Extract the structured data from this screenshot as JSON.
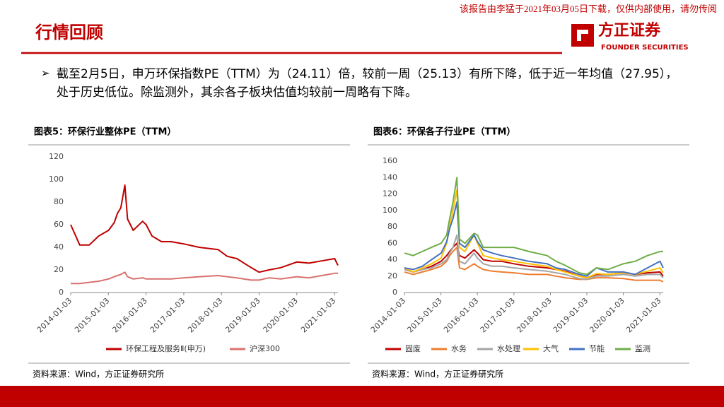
{
  "header": {
    "title": "行情回顾",
    "notice": "该报告由李猛于2021年03月05日下载，仅供内部使用，请勿传阅",
    "logo": "方正证券",
    "logo_en": "FOUNDER SECURITIES"
  },
  "bullet": "截至2月5日，申万环保指数PE（TTM）为（24.11）倍，较前一周（25.13）有所下降，低于近一年均值（27.95），处于历史低位。除监测外，其余各子板块估值均较前一周略有下降。",
  "chart_data": [
    {
      "type": "line",
      "title": "图表5：环保行业整体PE（TTM）",
      "source": "资料来源：Wind，方正证券研究所",
      "x": [
        "2014-01-03",
        "2014-04-01",
        "2014-07-01",
        "2014-10-01",
        "2015-01-05",
        "2015-03-02",
        "2015-04-01",
        "2015-05-04",
        "2015-06-12",
        "2015-07-08",
        "2015-09-01",
        "2015-12-01",
        "2016-01-04",
        "2016-03-01",
        "2016-06-01",
        "2016-09-01",
        "2017-01-03",
        "2017-06-01",
        "2017-12-01",
        "2018-03-01",
        "2018-06-01",
        "2018-10-18",
        "2019-01-03",
        "2019-04-08",
        "2019-08-01",
        "2020-01-03",
        "2020-05-01",
        "2020-09-01",
        "2021-01-04",
        "2021-02-05"
      ],
      "xlim": [
        "2014-01-03",
        "2021-02-05"
      ],
      "xticks": [
        "2014-01-03",
        "2015-01-03",
        "2016-01-03",
        "2017-01-03",
        "2018-01-03",
        "2019-01-03",
        "2020-01-03",
        "2021-01-03"
      ],
      "ylim": [
        0,
        120
      ],
      "yticks": [
        0,
        20,
        40,
        60,
        80,
        100,
        120
      ],
      "series": [
        {
          "name": "环保工程及服务Ⅱ(申万)",
          "color": "#c00000",
          "values": [
            60,
            42,
            42,
            50,
            55,
            62,
            70,
            75,
            95,
            65,
            55,
            63,
            60,
            50,
            45,
            45,
            43,
            40,
            38,
            32,
            30,
            22,
            18,
            20,
            22,
            27,
            26,
            28,
            30,
            24
          ]
        },
        {
          "name": "沪深300",
          "color": "#d9716e",
          "values": [
            8,
            8,
            9,
            10,
            12,
            14,
            15,
            16,
            18,
            14,
            12,
            13,
            12,
            12,
            12,
            12,
            13,
            14,
            15,
            14,
            13,
            11,
            11,
            13,
            12,
            14,
            13,
            15,
            17,
            17
          ]
        }
      ]
    },
    {
      "type": "line",
      "title": "图表6：环保各子行业PE（TTM）",
      "source": "资料来源：Wind，方正证券研究所",
      "x": [
        "2014-01-03",
        "2014-04-01",
        "2014-07-01",
        "2014-10-01",
        "2015-01-05",
        "2015-03-02",
        "2015-04-01",
        "2015-05-04",
        "2015-06-12",
        "2015-07-08",
        "2015-09-01",
        "2015-12-01",
        "2016-01-04",
        "2016-03-01",
        "2016-06-01",
        "2016-09-01",
        "2017-01-03",
        "2017-06-01",
        "2017-12-01",
        "2018-03-01",
        "2018-06-01",
        "2018-10-18",
        "2019-01-03",
        "2019-04-08",
        "2019-08-01",
        "2020-01-03",
        "2020-05-01",
        "2020-09-01",
        "2021-01-04",
        "2021-02-05"
      ],
      "xlim": [
        "2014-01-03",
        "2021-02-05"
      ],
      "xticks": [
        "2014-01-03",
        "2015-01-03",
        "2016-01-03",
        "2017-01-03",
        "2018-01-03",
        "2019-01-03",
        "2020-01-03",
        "2021-01-03"
      ],
      "ylim": [
        0,
        160
      ],
      "yticks": [
        0,
        20,
        40,
        60,
        80,
        100,
        120,
        140,
        160
      ],
      "series": [
        {
          "name": "固废",
          "color": "#c00000",
          "values": [
            28,
            25,
            28,
            32,
            38,
            45,
            50,
            55,
            60,
            45,
            42,
            52,
            48,
            40,
            38,
            38,
            35,
            32,
            30,
            28,
            26,
            20,
            18,
            22,
            22,
            24,
            22,
            24,
            25,
            20
          ]
        },
        {
          "name": "水务",
          "color": "#ed7d31",
          "values": [
            25,
            22,
            25,
            28,
            32,
            38,
            45,
            50,
            55,
            30,
            28,
            35,
            32,
            28,
            26,
            25,
            24,
            22,
            22,
            20,
            18,
            16,
            16,
            18,
            18,
            17,
            15,
            15,
            15,
            13
          ]
        },
        {
          "name": "水处理",
          "color": "#a5a5a5",
          "values": [
            28,
            25,
            28,
            30,
            35,
            40,
            48,
            55,
            70,
            38,
            35,
            48,
            42,
            35,
            32,
            32,
            30,
            28,
            26,
            24,
            22,
            17,
            16,
            20,
            20,
            22,
            20,
            22,
            22,
            18
          ]
        },
        {
          "name": "大气",
          "color": "#ffc000",
          "values": [
            30,
            25,
            30,
            35,
            42,
            60,
            80,
            100,
            125,
            55,
            50,
            70,
            60,
            45,
            42,
            40,
            38,
            35,
            32,
            28,
            25,
            20,
            18,
            23,
            22,
            24,
            22,
            26,
            30,
            24
          ]
        },
        {
          "name": "节能",
          "color": "#4472c4",
          "values": [
            30,
            28,
            32,
            40,
            48,
            62,
            78,
            90,
            110,
            60,
            55,
            70,
            62,
            52,
            48,
            45,
            42,
            38,
            35,
            30,
            28,
            22,
            20,
            30,
            25,
            25,
            22,
            30,
            38,
            30
          ]
        },
        {
          "name": "监测",
          "color": "#70ad47",
          "values": [
            48,
            45,
            50,
            55,
            60,
            70,
            90,
            110,
            140,
            65,
            60,
            72,
            70,
            55,
            55,
            55,
            55,
            50,
            45,
            38,
            33,
            24,
            22,
            30,
            28,
            35,
            38,
            45,
            50,
            50
          ]
        }
      ]
    }
  ]
}
